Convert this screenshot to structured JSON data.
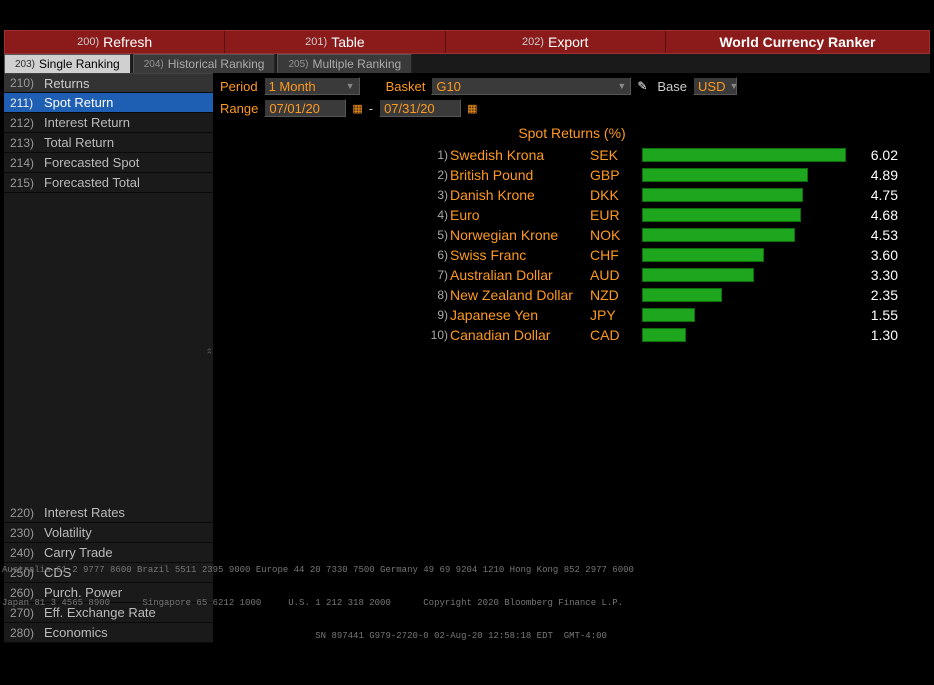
{
  "topbar": {
    "items": [
      {
        "num": "200)",
        "label": "Refresh"
      },
      {
        "num": "201)",
        "label": "Table"
      },
      {
        "num": "202)",
        "label": "Export"
      },
      {
        "num": "",
        "label": "World Currency Ranker"
      }
    ]
  },
  "tabs": [
    {
      "num": "203)",
      "label": "Single Ranking",
      "active": true
    },
    {
      "num": "204)",
      "label": "Historical Ranking",
      "active": false
    },
    {
      "num": "205)",
      "label": "Multiple Ranking",
      "active": false
    }
  ],
  "sidebar_top": [
    {
      "num": "210)",
      "label": "Returns",
      "section": true
    },
    {
      "num": "211)",
      "label": "Spot Return",
      "active": true
    },
    {
      "num": "212)",
      "label": "Interest Return"
    },
    {
      "num": "213)",
      "label": "Total Return"
    },
    {
      "num": "214)",
      "label": "Forecasted Spot"
    },
    {
      "num": "215)",
      "label": "Forecasted Total"
    }
  ],
  "sidebar_bottom": [
    {
      "num": "220)",
      "label": "Interest Rates"
    },
    {
      "num": "230)",
      "label": "Volatility"
    },
    {
      "num": "240)",
      "label": "Carry Trade"
    },
    {
      "num": "250)",
      "label": "CDS"
    },
    {
      "num": "260)",
      "label": "Purch. Power"
    },
    {
      "num": "270)",
      "label": "Eff. Exchange Rate"
    },
    {
      "num": "280)",
      "label": "Economics"
    }
  ],
  "filters": {
    "period_label": "Period",
    "period_value": "1 Month",
    "basket_label": "Basket",
    "basket_value": "G10",
    "base_label": "Base",
    "base_value": "USD",
    "range_label": "Range",
    "range_from": "07/01/20",
    "range_sep": "-",
    "range_to": "07/31/20"
  },
  "chart": {
    "title": "Spot Returns (%)",
    "max_value": 6.2,
    "bar_color": "#1fa61f",
    "rows": [
      {
        "idx": "1)",
        "name": "Swedish Krona",
        "code": "SEK",
        "value": 6.02
      },
      {
        "idx": "2)",
        "name": "British Pound",
        "code": "GBP",
        "value": 4.89
      },
      {
        "idx": "3)",
        "name": "Danish Krone",
        "code": "DKK",
        "value": 4.75
      },
      {
        "idx": "4)",
        "name": "Euro",
        "code": "EUR",
        "value": 4.68
      },
      {
        "idx": "5)",
        "name": "Norwegian Krone",
        "code": "NOK",
        "value": 4.53
      },
      {
        "idx": "6)",
        "name": "Swiss Franc",
        "code": "CHF",
        "value": 3.6
      },
      {
        "idx": "7)",
        "name": "Australian Dollar",
        "code": "AUD",
        "value": 3.3
      },
      {
        "idx": "8)",
        "name": "New Zealand Dollar",
        "code": "NZD",
        "value": 2.35
      },
      {
        "idx": "9)",
        "name": "Japanese Yen",
        "code": "JPY",
        "value": 1.55
      },
      {
        "idx": "10)",
        "name": "Canadian Dollar",
        "code": "CAD",
        "value": 1.3
      }
    ]
  },
  "footer_line1": "Australia 61 2 9777 8600 Brazil 5511 2395 9000 Europe 44 20 7330 7500 Germany 49 69 9204 1210 Hong Kong 852 2977 6000",
  "footer_line2": "Japan 81 3 4565 8900      Singapore 65 6212 1000     U.S. 1 212 318 2000      Copyright 2020 Bloomberg Finance L.P.",
  "footer_line3": "                                                          SN 897441 G979-2720-0 02-Aug-20 12:58:18 EDT  GMT-4:00"
}
